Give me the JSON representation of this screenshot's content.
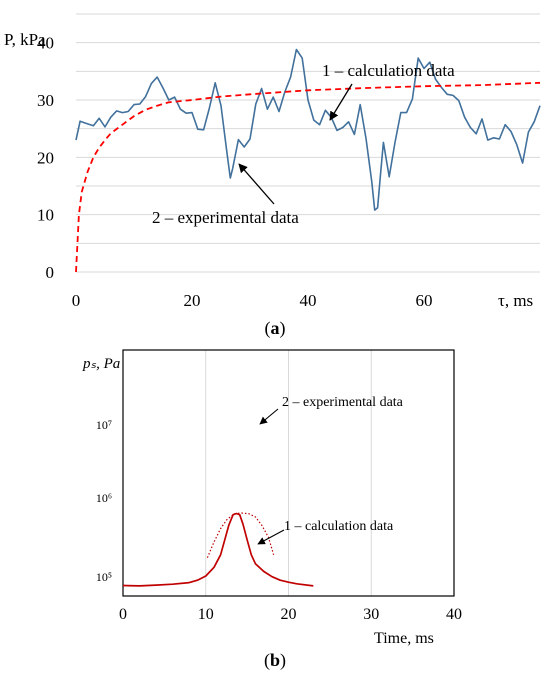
{
  "chart_data": [
    {
      "type": "line",
      "panel_label": "a",
      "ylabel": "P, kPa",
      "xlabel": "τ, ms",
      "xlim": [
        0,
        80
      ],
      "ylim": [
        0,
        45
      ],
      "x_ticks": [
        "0",
        "20",
        "40",
        "60"
      ],
      "y_ticks": [
        "0",
        "10",
        "20",
        "30",
        "40"
      ],
      "grid": "horizontal",
      "series": [
        {
          "name": "2 – experimental data",
          "style": "solid",
          "color": "#41719c",
          "points": [
            [
              0,
              23
            ],
            [
              0.7,
              26.3
            ],
            [
              1.5,
              26
            ],
            [
              3,
              25.5
            ],
            [
              4,
              26.8
            ],
            [
              5,
              25.3
            ],
            [
              6,
              27
            ],
            [
              7,
              28.1
            ],
            [
              8,
              27.8
            ],
            [
              9,
              28
            ],
            [
              10,
              29.2
            ],
            [
              11,
              29.3
            ],
            [
              12,
              30.6
            ],
            [
              13,
              32.9
            ],
            [
              14,
              34
            ],
            [
              15,
              32.1
            ],
            [
              16,
              30
            ],
            [
              17,
              30.5
            ],
            [
              18,
              28.4
            ],
            [
              19,
              27.7
            ],
            [
              20,
              27.8
            ],
            [
              21,
              24.9
            ],
            [
              22,
              24.8
            ],
            [
              23,
              28.6
            ],
            [
              24,
              33
            ],
            [
              25,
              29
            ],
            [
              26,
              21
            ],
            [
              26.6,
              16.4
            ],
            [
              27,
              18
            ],
            [
              28,
              23.1
            ],
            [
              29,
              21.8
            ],
            [
              30,
              23.2
            ],
            [
              31,
              29.3
            ],
            [
              32,
              32
            ],
            [
              33,
              28.4
            ],
            [
              34,
              30.5
            ],
            [
              35,
              28
            ],
            [
              36,
              31.4
            ],
            [
              37,
              34
            ],
            [
              38,
              38.8
            ],
            [
              39,
              37.3
            ],
            [
              40,
              30
            ],
            [
              41,
              26.5
            ],
            [
              42,
              25.7
            ],
            [
              43,
              28.2
            ],
            [
              44,
              27
            ],
            [
              45,
              24.7
            ],
            [
              46,
              25.2
            ],
            [
              47,
              26.2
            ],
            [
              48,
              24
            ],
            [
              49,
              29.2
            ],
            [
              50,
              23.3
            ],
            [
              51,
              15.7
            ],
            [
              51.5,
              10.8
            ],
            [
              52,
              11.2
            ],
            [
              52.5,
              17
            ],
            [
              53,
              22.6
            ],
            [
              54,
              16.6
            ],
            [
              55,
              22.6
            ],
            [
              56,
              27.8
            ],
            [
              57,
              27.8
            ],
            [
              58,
              30.2
            ],
            [
              59,
              37.3
            ],
            [
              60,
              35.5
            ],
            [
              61,
              36.6
            ],
            [
              62,
              33.6
            ],
            [
              63,
              32.2
            ],
            [
              64,
              31
            ],
            [
              65,
              30.8
            ],
            [
              66,
              29.9
            ],
            [
              67,
              27
            ],
            [
              68,
              25.2
            ],
            [
              69,
              24.1
            ],
            [
              70,
              26.7
            ],
            [
              71,
              23
            ],
            [
              72,
              23.4
            ],
            [
              73,
              23.2
            ],
            [
              74,
              25.7
            ],
            [
              75,
              24.5
            ],
            [
              76,
              22.2
            ],
            [
              77,
              19
            ],
            [
              78,
              24.4
            ],
            [
              79,
              26.2
            ],
            [
              80,
              29
            ]
          ]
        },
        {
          "name": "1 – calculation data",
          "style": "dashed",
          "color": "#ff0000",
          "points": [
            [
              0,
              0
            ],
            [
              0.5,
              10
            ],
            [
              1,
              14
            ],
            [
              2,
              17.5
            ],
            [
              3,
              20
            ],
            [
              4,
              21.7
            ],
            [
              5,
              23
            ],
            [
              6,
              24.2
            ],
            [
              8,
              25.7
            ],
            [
              10,
              27.2
            ],
            [
              12,
              28.3
            ],
            [
              14,
              29
            ],
            [
              16,
              29.6
            ],
            [
              20,
              30
            ],
            [
              25,
              30.6
            ],
            [
              30,
              31
            ],
            [
              40,
              31.7
            ],
            [
              50,
              32.1
            ],
            [
              60,
              32.4
            ],
            [
              70,
              32.6
            ],
            [
              80,
              33
            ]
          ]
        }
      ],
      "annotations": [
        "1 – calculation data",
        "2 – experimental data"
      ]
    },
    {
      "type": "line",
      "panel_label": "b",
      "ylabel": "pₛ, Pa",
      "xlabel": "Time, ms",
      "xlim": [
        0,
        40
      ],
      "y_scale": "log",
      "y_ticks": [
        "10⁵",
        "10⁶",
        "10⁷"
      ],
      "x_ticks": [
        "0",
        "10",
        "20",
        "30",
        "40"
      ],
      "grid": "vertical",
      "series": [
        {
          "name": "1 – calculation data",
          "style": "solid",
          "color": "#c00000",
          "points": [
            [
              0,
              0.75
            ],
            [
              2,
              0.74
            ],
            [
              4,
              0.76
            ],
            [
              6,
              0.78
            ],
            [
              8,
              0.82
            ],
            [
              9,
              0.88
            ],
            [
              10,
              1.0
            ],
            [
              11,
              1.3
            ],
            [
              11.8,
              1.9
            ],
            [
              12.3,
              3.0
            ],
            [
              12.8,
              4.7
            ],
            [
              13.3,
              6.4
            ],
            [
              13.7,
              6.65
            ],
            [
              14.1,
              6.4
            ],
            [
              14.5,
              4.8
            ],
            [
              15,
              3.0
            ],
            [
              15.5,
              1.9
            ],
            [
              16,
              1.45
            ],
            [
              17,
              1.15
            ],
            [
              18,
              0.98
            ],
            [
              19,
              0.88
            ],
            [
              20,
              0.83
            ],
            [
              21,
              0.79
            ],
            [
              23,
              0.74
            ]
          ]
        },
        {
          "name": "2 – experimental data",
          "style": "dotted",
          "color": "#c00000",
          "points": [
            [
              10.2,
              1.74
            ],
            [
              11,
              2.8
            ],
            [
              11.8,
              4.2
            ],
            [
              12.6,
              5.6
            ],
            [
              13.5,
              6.6
            ],
            [
              14.3,
              6.75
            ],
            [
              15.2,
              6.6
            ],
            [
              16,
              6.0
            ],
            [
              16.8,
              4.6
            ],
            [
              17.6,
              3.2
            ],
            [
              18.2,
              1.9
            ]
          ]
        }
      ],
      "annotations": [
        "2 – experimental data",
        "1 – calculation data"
      ]
    }
  ],
  "captions": [
    "(a)",
    "(b)"
  ]
}
